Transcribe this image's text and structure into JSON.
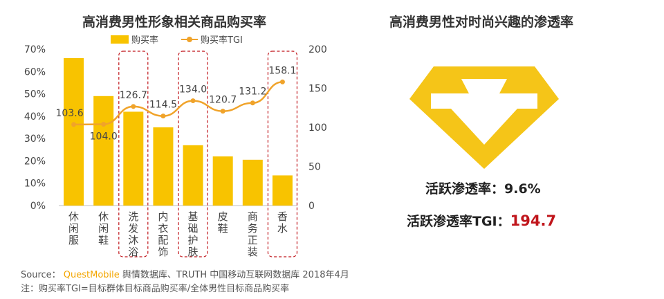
{
  "left_chart_title": "高消费男性形象相关商品购买率",
  "right_panel": {
    "title": "高消费男性对时尚兴趣的渗透率",
    "stat1_label": "活跃渗透率：",
    "stat1_value": "9.6%",
    "stat2_label": "活跃渗透率TGI：",
    "stat2_value": "194.7",
    "accent": "#f5c518",
    "value_red": "#c0151b"
  },
  "footer": {
    "source_prefix": "Source：",
    "source_brand": "QuestMobile",
    "source_rest": "舆情数据库、TRUTH 中国移动互联网数据库 2018年4月",
    "note": "注：购买率TGI=目标群体目标商品购买率/全体男性目标商品购买率"
  },
  "chart_data": {
    "type": "bar",
    "title": "高消费男性形象相关商品购买率",
    "categories": [
      "休闲服",
      "休闲鞋",
      "洗发沐浴",
      "内衣配饰",
      "基础护肤",
      "皮鞋",
      "商务正装",
      "香水"
    ],
    "series": [
      {
        "name": "购买率",
        "axis": "left",
        "values": [
          66,
          49,
          42,
          35,
          27,
          22,
          20.5,
          13.5
        ],
        "color": "#f8c300"
      },
      {
        "name": "购买率TGI",
        "axis": "right",
        "type": "line",
        "values": [
          103.6,
          104.0,
          126.7,
          114.5,
          134.0,
          120.7,
          131.2,
          158.1
        ],
        "color": "#f0a32a"
      }
    ],
    "y_left": {
      "ticks": [
        "0%",
        "10%",
        "20%",
        "30%",
        "40%",
        "50%",
        "60%",
        "70%"
      ],
      "ylim": [
        0,
        70
      ]
    },
    "y_right": {
      "ticks": [
        "0",
        "50",
        "100",
        "150",
        "200"
      ],
      "ylim": [
        0,
        200
      ]
    },
    "highlighted": [
      "洗发沐浴",
      "基础护肤",
      "香水"
    ],
    "legend_position": "top",
    "grid": false
  }
}
